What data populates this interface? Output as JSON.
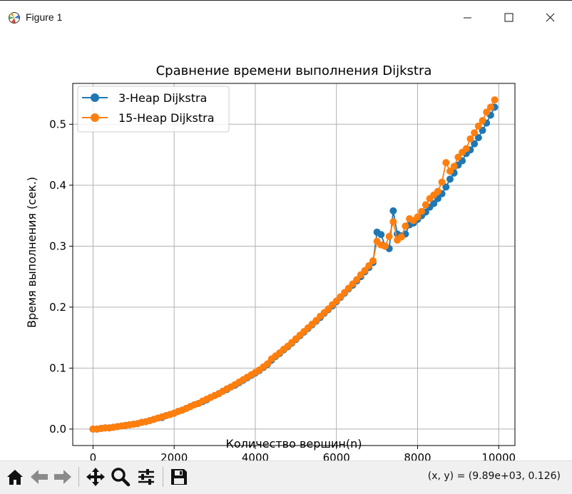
{
  "window": {
    "title": "Figure 1",
    "controls": [
      "minimize",
      "maximize",
      "close"
    ]
  },
  "toolbar": {
    "buttons": [
      "home-icon",
      "back-icon",
      "forward-icon",
      "pan-icon",
      "zoom-icon",
      "configure-icon",
      "save-icon"
    ],
    "coordinates": "(x, y) = (9.89e+03, 0.126)"
  },
  "chart_data": {
    "type": "line",
    "title": "Сравнение времени выполнения Dijkstra",
    "xlabel": "Количество вершин(n)",
    "ylabel": "Время выполнения (сек.)",
    "xlim": [
      -500,
      10400
    ],
    "ylim": [
      -0.027,
      0.567
    ],
    "xticks": [
      0,
      2000,
      4000,
      6000,
      8000,
      10000
    ],
    "yticks": [
      0.0,
      0.1,
      0.2,
      0.3,
      0.4,
      0.5
    ],
    "xtick_labels": [
      "0",
      "2000",
      "4000",
      "6000",
      "8000",
      "10000"
    ],
    "ytick_labels": [
      "0.0",
      "0.1",
      "0.2",
      "0.3",
      "0.4",
      "0.5"
    ],
    "grid": true,
    "legend_position": "top-left",
    "colors": {
      "series1": "#1f77b4",
      "series2": "#ff7f0e",
      "grid": "#b0b0b0"
    },
    "series": [
      {
        "name": "3-Heap Dijkstra",
        "x": [
          0,
          100,
          200,
          300,
          400,
          500,
          600,
          700,
          800,
          900,
          1000,
          1100,
          1200,
          1300,
          1400,
          1500,
          1600,
          1700,
          1800,
          1900,
          2000,
          2100,
          2200,
          2300,
          2400,
          2500,
          2600,
          2700,
          2800,
          2900,
          3000,
          3100,
          3200,
          3300,
          3400,
          3500,
          3600,
          3700,
          3800,
          3900,
          4000,
          4100,
          4200,
          4300,
          4400,
          4500,
          4600,
          4700,
          4800,
          4900,
          5000,
          5100,
          5200,
          5300,
          5400,
          5500,
          5600,
          5700,
          5800,
          5900,
          6000,
          6100,
          6200,
          6300,
          6400,
          6500,
          6600,
          6700,
          6800,
          6900,
          7000,
          7100,
          7200,
          7300,
          7400,
          7500,
          7600,
          7700,
          7800,
          7900,
          8000,
          8100,
          8200,
          8300,
          8400,
          8500,
          8600,
          8700,
          8800,
          8900,
          9000,
          9100,
          9200,
          9300,
          9400,
          9500,
          9600,
          9700,
          9800,
          9900
        ],
        "values": [
          0.0,
          0.0,
          0.001,
          0.002,
          0.002,
          0.003,
          0.004,
          0.005,
          0.006,
          0.007,
          0.008,
          0.009,
          0.011,
          0.012,
          0.014,
          0.016,
          0.018,
          0.019,
          0.022,
          0.024,
          0.026,
          0.029,
          0.031,
          0.034,
          0.037,
          0.04,
          0.042,
          0.045,
          0.048,
          0.052,
          0.055,
          0.058,
          0.062,
          0.065,
          0.069,
          0.072,
          0.076,
          0.08,
          0.084,
          0.088,
          0.092,
          0.096,
          0.101,
          0.106,
          0.113,
          0.119,
          0.124,
          0.13,
          0.135,
          0.141,
          0.147,
          0.153,
          0.159,
          0.165,
          0.171,
          0.177,
          0.183,
          0.19,
          0.196,
          0.202,
          0.209,
          0.216,
          0.223,
          0.23,
          0.236,
          0.243,
          0.25,
          0.258,
          0.265,
          0.273,
          0.323,
          0.319,
          0.3,
          0.296,
          0.358,
          0.32,
          0.317,
          0.32,
          0.335,
          0.338,
          0.344,
          0.35,
          0.356,
          0.364,
          0.37,
          0.378,
          0.386,
          0.397,
          0.41,
          0.42,
          0.433,
          0.44,
          0.452,
          0.458,
          0.468,
          0.478,
          0.49,
          0.502,
          0.515,
          0.528
        ]
      },
      {
        "name": "15-Heap Dijkstra",
        "x": [
          0,
          100,
          200,
          300,
          400,
          500,
          600,
          700,
          800,
          900,
          1000,
          1100,
          1200,
          1300,
          1400,
          1500,
          1600,
          1700,
          1800,
          1900,
          2000,
          2100,
          2200,
          2300,
          2400,
          2500,
          2600,
          2700,
          2800,
          2900,
          3000,
          3100,
          3200,
          3300,
          3400,
          3500,
          3600,
          3700,
          3800,
          3900,
          4000,
          4100,
          4200,
          4300,
          4400,
          4500,
          4600,
          4700,
          4800,
          4900,
          5000,
          5100,
          5200,
          5300,
          5400,
          5500,
          5600,
          5700,
          5800,
          5900,
          6000,
          6100,
          6200,
          6300,
          6400,
          6500,
          6600,
          6700,
          6800,
          6900,
          7000,
          7100,
          7200,
          7300,
          7400,
          7500,
          7600,
          7700,
          7800,
          7900,
          8000,
          8100,
          8200,
          8300,
          8400,
          8500,
          8600,
          8700,
          8800,
          8900,
          9000,
          9100,
          9200,
          9300,
          9400,
          9500,
          9600,
          9700,
          9800,
          9900
        ],
        "values": [
          0.0,
          0.0,
          0.001,
          0.002,
          0.002,
          0.003,
          0.004,
          0.005,
          0.006,
          0.007,
          0.008,
          0.009,
          0.011,
          0.012,
          0.014,
          0.016,
          0.018,
          0.02,
          0.022,
          0.024,
          0.026,
          0.029,
          0.031,
          0.034,
          0.037,
          0.04,
          0.042,
          0.046,
          0.049,
          0.052,
          0.055,
          0.058,
          0.062,
          0.066,
          0.069,
          0.073,
          0.077,
          0.081,
          0.085,
          0.089,
          0.093,
          0.097,
          0.102,
          0.107,
          0.115,
          0.12,
          0.125,
          0.131,
          0.136,
          0.142,
          0.148,
          0.154,
          0.16,
          0.166,
          0.172,
          0.178,
          0.185,
          0.191,
          0.197,
          0.204,
          0.21,
          0.217,
          0.224,
          0.231,
          0.238,
          0.245,
          0.253,
          0.26,
          0.268,
          0.276,
          0.308,
          0.302,
          0.3,
          0.316,
          0.34,
          0.31,
          0.315,
          0.333,
          0.345,
          0.342,
          0.348,
          0.357,
          0.368,
          0.378,
          0.384,
          0.39,
          0.405,
          0.437,
          0.423,
          0.431,
          0.446,
          0.454,
          0.46,
          0.476,
          0.486,
          0.497,
          0.506,
          0.52,
          0.528,
          0.54
        ]
      }
    ]
  }
}
